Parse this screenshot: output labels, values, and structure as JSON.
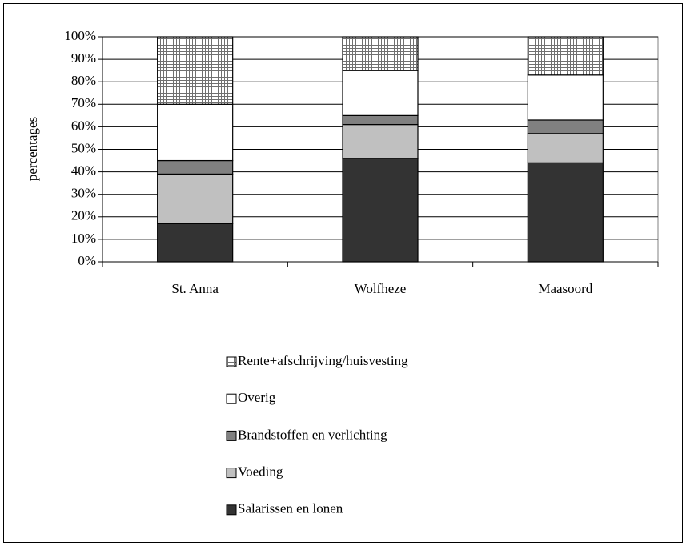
{
  "chart_data": {
    "type": "stacked_bar",
    "y_label": "percentages",
    "categories": [
      "St. Anna",
      "Wolfheze",
      "Maasoord"
    ],
    "series": [
      {
        "name": "Salarissen en lonen",
        "color": "#333333",
        "values": [
          17,
          46,
          44
        ]
      },
      {
        "name": "Voeding",
        "color": "#c0c0c0",
        "values": [
          22,
          15,
          13
        ]
      },
      {
        "name": "Brandstoffen en verlichting",
        "color": "#808080",
        "values": [
          6,
          4,
          6
        ]
      },
      {
        "name": "Overig",
        "color": "#ffffff",
        "values": [
          25,
          20,
          20
        ]
      },
      {
        "name": "Rente+afschrijving/huisvesting",
        "color": "#707070",
        "pattern": "crosshatch",
        "values": [
          30,
          15,
          17
        ]
      }
    ],
    "ylim": [
      0,
      100
    ],
    "yticks": [
      {
        "value": 0,
        "label": "0%"
      },
      {
        "value": 10,
        "label": "10%"
      },
      {
        "value": 20,
        "label": "20%"
      },
      {
        "value": 30,
        "label": "30%"
      },
      {
        "value": 40,
        "label": "40%"
      },
      {
        "value": 50,
        "label": "50%"
      },
      {
        "value": 60,
        "label": "60%"
      },
      {
        "value": 70,
        "label": "70%"
      },
      {
        "value": 80,
        "label": "80%"
      },
      {
        "value": 90,
        "label": "90%"
      },
      {
        "value": 100,
        "label": "100%"
      }
    ],
    "grid": true,
    "legend": "bottom"
  }
}
